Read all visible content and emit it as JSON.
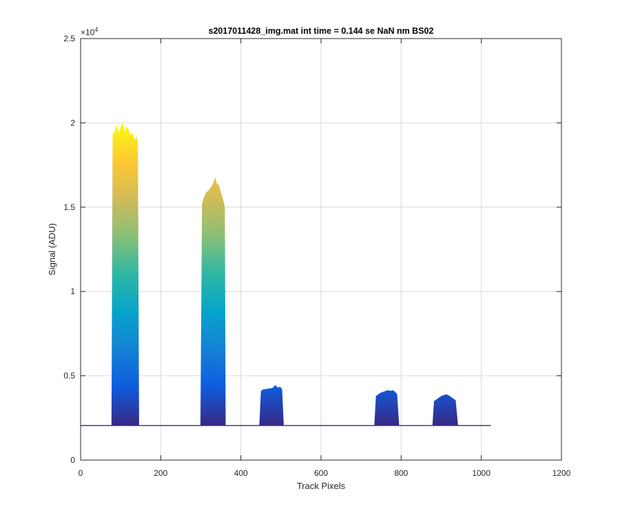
{
  "chart_data": {
    "type": "area",
    "title": "s2017011428_img.mat int time = 0.144 se  NaN nm BS02",
    "xlabel": "Track Pixels",
    "ylabel": "Signal (ADU)",
    "y_exponent_label": "×10",
    "y_exponent_power": "4",
    "xlim": [
      0,
      1200
    ],
    "ylim": [
      0,
      25000
    ],
    "x_ticks": [
      0,
      200,
      400,
      600,
      800,
      1000,
      1200
    ],
    "x_tick_labels": [
      "0",
      "200",
      "400",
      "600",
      "800",
      "1000",
      "1200"
    ],
    "y_ticks": [
      0,
      5000,
      10000,
      15000,
      20000,
      25000
    ],
    "y_tick_labels": [
      "0",
      "0.5",
      "1",
      "1.5",
      "2",
      "2.5"
    ],
    "grid": true,
    "colormap": "parula",
    "colormap_colors": [
      "#352a87",
      "#0f5cdd",
      "#1481d6",
      "#06a4ca",
      "#2eb7a4",
      "#87bf77",
      "#d1bb59",
      "#fec832",
      "#f9fb0e"
    ],
    "axis_color": "#262626",
    "grid_color": "#d9d9d9",
    "baseline": {
      "x_start": 0,
      "x_end": 1024,
      "y": 2050
    },
    "peaks": [
      {
        "x": [
          77,
          80,
          85,
          90,
          95,
          100,
          105,
          110,
          115,
          120,
          125,
          130,
          135,
          140,
          143,
          146
        ],
        "y": [
          2050,
          19300,
          19500,
          19900,
          19400,
          19800,
          20000,
          19500,
          19800,
          19600,
          19300,
          19400,
          19000,
          19200,
          18800,
          2050
        ]
      },
      {
        "x": [
          299,
          303,
          308,
          314,
          320,
          326,
          332,
          336,
          340,
          345,
          350,
          355,
          360,
          362
        ],
        "y": [
          2050,
          15200,
          15600,
          15900,
          16000,
          16200,
          16500,
          16800,
          16400,
          16300,
          15900,
          15500,
          15000,
          2050
        ]
      },
      {
        "x": [
          446,
          450,
          456,
          462,
          468,
          474,
          480,
          486,
          492,
          498,
          503,
          507
        ],
        "y": [
          2050,
          4100,
          4200,
          4200,
          4250,
          4250,
          4300,
          4450,
          4300,
          4350,
          4200,
          2050
        ]
      },
      {
        "x": [
          733,
          737,
          743,
          749,
          755,
          761,
          767,
          773,
          779,
          785,
          790,
          795
        ],
        "y": [
          2050,
          3800,
          3900,
          4000,
          4050,
          4100,
          4150,
          4100,
          4150,
          4050,
          3900,
          2050
        ]
      },
      {
        "x": [
          878,
          882,
          888,
          894,
          900,
          906,
          912,
          918,
          924,
          930,
          936,
          942
        ],
        "y": [
          2050,
          3500,
          3600,
          3700,
          3800,
          3850,
          3900,
          3850,
          3750,
          3650,
          3550,
          2050
        ]
      }
    ]
  }
}
